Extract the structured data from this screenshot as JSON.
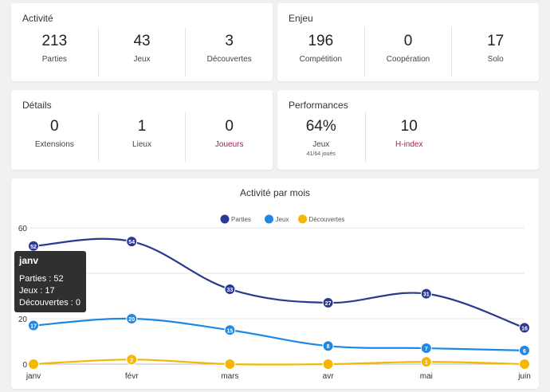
{
  "activite": {
    "title": "Activité",
    "stats": [
      {
        "value": "213",
        "label": "Parties"
      },
      {
        "value": "43",
        "label": "Jeux"
      },
      {
        "value": "3",
        "label": "Découvertes"
      }
    ]
  },
  "enjeu": {
    "title": "Enjeu",
    "stats": [
      {
        "value": "196",
        "label": "Compétition"
      },
      {
        "value": "0",
        "label": "Coopération"
      },
      {
        "value": "17",
        "label": "Solo"
      }
    ]
  },
  "details": {
    "title": "Détails",
    "stats": [
      {
        "value": "0",
        "label": "Extensions"
      },
      {
        "value": "1",
        "label": "Lieux"
      },
      {
        "value": "0",
        "label": "Joueurs"
      }
    ]
  },
  "performances": {
    "title": "Performances",
    "stats": [
      {
        "value": "64%",
        "label": "Jeux",
        "sub": "41/64 joués"
      },
      {
        "value": "10",
        "label": "H-index"
      }
    ]
  },
  "colors": {
    "parties": "#2b3990",
    "jeux": "#1e88e5",
    "decouvertes": "#f5b800",
    "link": "#a61d5c"
  },
  "tooltip": {
    "title": "janv",
    "lines": [
      "Parties : 52",
      "Jeux : 17",
      "Découvertes : 0"
    ]
  },
  "chart_data": {
    "type": "line",
    "title": "Activité par mois",
    "categories": [
      "janv",
      "févr",
      "mars",
      "avr",
      "mai",
      "juin"
    ],
    "series": [
      {
        "name": "Parties",
        "values": [
          52,
          54,
          33,
          27,
          31,
          16
        ]
      },
      {
        "name": "Jeux",
        "values": [
          17,
          20,
          15,
          8,
          7,
          6
        ]
      },
      {
        "name": "Découvertes",
        "values": [
          0,
          2,
          0,
          0,
          1,
          0
        ]
      }
    ],
    "yticks": [
      0,
      20,
      60
    ],
    "ylim": [
      0,
      60
    ],
    "legend": "top",
    "grid": true
  }
}
